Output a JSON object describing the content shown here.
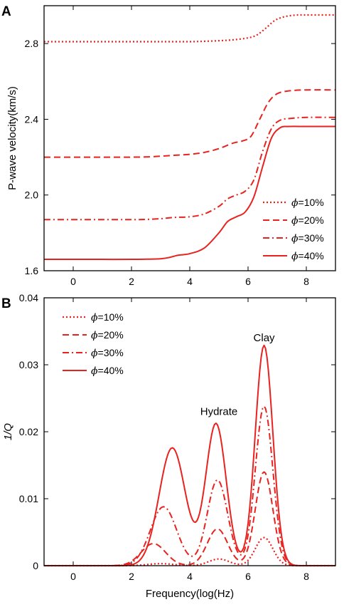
{
  "figure": {
    "line_color": "#e8231f",
    "panels": [
      {
        "label": "A",
        "chart_data": {
          "type": "line",
          "xlabel": "",
          "ylabel": "P-wave velocity(km/s)",
          "xlim": [
            -1,
            9
          ],
          "ylim": [
            1.6,
            3.0
          ],
          "xticks": [
            0,
            2,
            4,
            6,
            8
          ],
          "yticks": [
            1.6,
            2.0,
            2.4,
            2.8
          ],
          "ytick_labels": [
            "1.6",
            "2.0",
            "2.4",
            "2.8"
          ],
          "legend_position": "bottom-right",
          "series": [
            {
              "name": "=10%",
              "symbol": "ϕ",
              "style": "dotted",
              "x": [
                -1,
                0,
                1,
                2,
                3,
                4,
                4.5,
                5,
                5.5,
                6,
                6.3,
                6.6,
                6.9,
                7.2,
                7.6,
                8,
                9
              ],
              "y": [
                2.81,
                2.81,
                2.81,
                2.81,
                2.81,
                2.81,
                2.812,
                2.815,
                2.82,
                2.83,
                2.845,
                2.88,
                2.92,
                2.94,
                2.95,
                2.951,
                2.951
              ]
            },
            {
              "name": "=20%",
              "symbol": "ϕ",
              "style": "dashed",
              "x": [
                -1,
                0,
                1,
                2,
                2.5,
                3,
                3.5,
                4,
                4.5,
                5,
                5.5,
                5.8,
                6.1,
                6.4,
                6.7,
                7,
                7.4,
                8,
                9
              ],
              "y": [
                2.2,
                2.2,
                2.2,
                2.2,
                2.201,
                2.205,
                2.21,
                2.215,
                2.225,
                2.245,
                2.275,
                2.285,
                2.31,
                2.4,
                2.49,
                2.535,
                2.55,
                2.555,
                2.555
              ]
            },
            {
              "name": "=30%",
              "symbol": "ϕ",
              "style": "dashdot",
              "x": [
                -1,
                0,
                1,
                2,
                2.5,
                3,
                3.5,
                4,
                4.5,
                5,
                5.3,
                5.6,
                5.9,
                6.2,
                6.5,
                6.8,
                7.1,
                7.5,
                8,
                9
              ],
              "y": [
                1.87,
                1.87,
                1.87,
                1.87,
                1.871,
                1.875,
                1.882,
                1.885,
                1.9,
                1.94,
                1.98,
                2.0,
                2.02,
                2.08,
                2.23,
                2.35,
                2.395,
                2.405,
                2.41,
                2.41
              ]
            },
            {
              "name": "=40%",
              "symbol": "ϕ",
              "style": "solid",
              "x": [
                -1,
                0,
                1,
                2,
                2.5,
                3,
                3.3,
                3.6,
                4,
                4.5,
                5,
                5.3,
                5.6,
                5.9,
                6.2,
                6.5,
                6.8,
                7.1,
                7.4,
                8,
                9
              ],
              "y": [
                1.66,
                1.66,
                1.66,
                1.66,
                1.661,
                1.663,
                1.67,
                1.682,
                1.69,
                1.72,
                1.8,
                1.86,
                1.885,
                1.91,
                1.99,
                2.15,
                2.3,
                2.355,
                2.362,
                2.362,
                2.362
              ]
            }
          ]
        }
      },
      {
        "label": "B",
        "chart_data": {
          "type": "line",
          "xlabel": "Frequency(log(Hz)",
          "ylabel": "1/Q",
          "xlim": [
            -1,
            9
          ],
          "ylim": [
            0,
            0.04
          ],
          "xticks": [
            0,
            2,
            4,
            6,
            8
          ],
          "yticks": [
            0,
            0.01,
            0.02,
            0.03,
            0.04
          ],
          "ytick_labels": [
            "0",
            "0.01",
            "0.02",
            "0.03",
            "0.04"
          ],
          "legend_position": "top-left",
          "annotations": [
            {
              "text": "Hydrate",
              "x": 5.0,
              "y": 0.0225
            },
            {
              "text": "Clay",
              "x": 6.55,
              "y": 0.0335
            }
          ],
          "series": [
            {
              "name": "=10%",
              "symbol": "ϕ",
              "style": "dotted",
              "peaks": [
                {
                  "x": 3.0,
                  "h": 0.0003,
                  "w": 0.45
                },
                {
                  "x": 5.0,
                  "h": 0.001,
                  "w": 0.35
                },
                {
                  "x": 6.55,
                  "h": 0.0042,
                  "w": 0.3
                }
              ]
            },
            {
              "name": "=20%",
              "symbol": "ϕ",
              "style": "dashed",
              "peaks": [
                {
                  "x": 2.75,
                  "h": 0.0033,
                  "w": 0.42
                },
                {
                  "x": 4.95,
                  "h": 0.0055,
                  "w": 0.35
                },
                {
                  "x": 6.55,
                  "h": 0.014,
                  "w": 0.3
                }
              ]
            },
            {
              "name": "=30%",
              "symbol": "ϕ",
              "style": "dashdot",
              "peaks": [
                {
                  "x": 3.1,
                  "h": 0.0088,
                  "w": 0.45
                },
                {
                  "x": 4.95,
                  "h": 0.0128,
                  "w": 0.35
                },
                {
                  "x": 6.55,
                  "h": 0.0238,
                  "w": 0.3
                }
              ]
            },
            {
              "name": "=40%",
              "symbol": "ϕ",
              "style": "solid",
              "peaks": [
                {
                  "x": 3.4,
                  "h": 0.0176,
                  "w": 0.45
                },
                {
                  "x": 4.9,
                  "h": 0.0212,
                  "w": 0.35
                },
                {
                  "x": 6.55,
                  "h": 0.0329,
                  "w": 0.3
                }
              ]
            }
          ]
        }
      }
    ]
  }
}
